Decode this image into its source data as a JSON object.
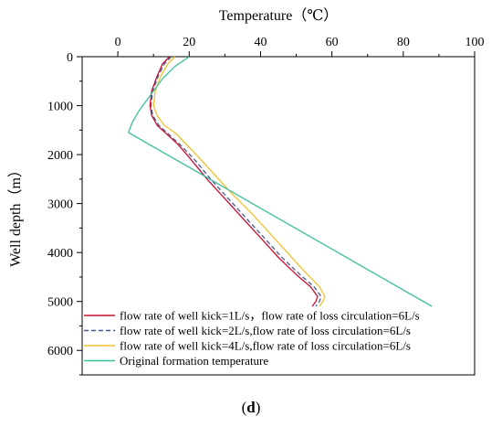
{
  "chart_data": {
    "type": "line",
    "title": "",
    "xlabel": "Temperature（℃）",
    "ylabel": "Well depth（m）",
    "x_axis_position": "top",
    "y_axis_inverted": true,
    "xlim": [
      -10,
      100
    ],
    "ylim": [
      0,
      6500
    ],
    "xticks": [
      0,
      20,
      40,
      60,
      80,
      100
    ],
    "yticks": [
      0,
      1000,
      2000,
      3000,
      4000,
      5000,
      6000
    ],
    "grid": false,
    "legend_position": "bottom-left",
    "series": [
      {
        "name": "flow rate of well kick=1L/s，flow rate of loss circulation=6L/s",
        "color": "#c8102e",
        "dash": "solid",
        "points": [
          [
            14.5,
            0
          ],
          [
            12.5,
            150
          ],
          [
            11,
            400
          ],
          [
            9.5,
            700
          ],
          [
            9,
            1000
          ],
          [
            9.5,
            1200
          ],
          [
            11,
            1400
          ],
          [
            14,
            1600
          ],
          [
            17,
            1800
          ],
          [
            20.5,
            2100
          ],
          [
            25,
            2500
          ],
          [
            30,
            2900
          ],
          [
            35,
            3300
          ],
          [
            40,
            3700
          ],
          [
            45,
            4100
          ],
          [
            50,
            4450
          ],
          [
            54,
            4700
          ],
          [
            56,
            4900
          ],
          [
            55.5,
            5000
          ],
          [
            54.5,
            5100
          ]
        ]
      },
      {
        "name": "flow rate of well kick=2L/s,flow rate of loss circulation=6L/s",
        "color": "#4a5a8c",
        "dash": "dashed",
        "points": [
          [
            15,
            0
          ],
          [
            13,
            150
          ],
          [
            11.3,
            400
          ],
          [
            9.8,
            700
          ],
          [
            9.3,
            1000
          ],
          [
            9.8,
            1200
          ],
          [
            11.5,
            1400
          ],
          [
            14.5,
            1600
          ],
          [
            17.5,
            1800
          ],
          [
            21.5,
            2100
          ],
          [
            26,
            2500
          ],
          [
            31,
            2900
          ],
          [
            36,
            3300
          ],
          [
            41,
            3700
          ],
          [
            46,
            4100
          ],
          [
            51,
            4450
          ],
          [
            55,
            4700
          ],
          [
            57,
            4900
          ],
          [
            56.5,
            5000
          ],
          [
            55.5,
            5100
          ]
        ]
      },
      {
        "name": "flow rate of well kick=4L/s,flow rate of loss circulation=6L/s",
        "color": "#f2c12e",
        "dash": "solid",
        "points": [
          [
            16,
            0
          ],
          [
            14,
            150
          ],
          [
            12,
            400
          ],
          [
            10.5,
            700
          ],
          [
            10,
            1000
          ],
          [
            11,
            1200
          ],
          [
            13,
            1400
          ],
          [
            16,
            1550
          ],
          [
            18,
            1700
          ],
          [
            22,
            2000
          ],
          [
            27,
            2400
          ],
          [
            32,
            2800
          ],
          [
            37.5,
            3200
          ],
          [
            42.5,
            3600
          ],
          [
            47.5,
            4000
          ],
          [
            52.5,
            4400
          ],
          [
            56.5,
            4700
          ],
          [
            58,
            4900
          ],
          [
            57.5,
            5000
          ],
          [
            56.5,
            5100
          ]
        ]
      },
      {
        "name": "Original formation temperature",
        "color": "#3fbfa0",
        "dash": "solid",
        "points": [
          [
            20,
            0
          ],
          [
            16,
            200
          ],
          [
            12.5,
            450
          ],
          [
            9,
            800
          ],
          [
            6,
            1100
          ],
          [
            4,
            1350
          ],
          [
            3,
            1550
          ],
          [
            88,
            5100
          ]
        ]
      }
    ]
  },
  "panel_label": "d"
}
